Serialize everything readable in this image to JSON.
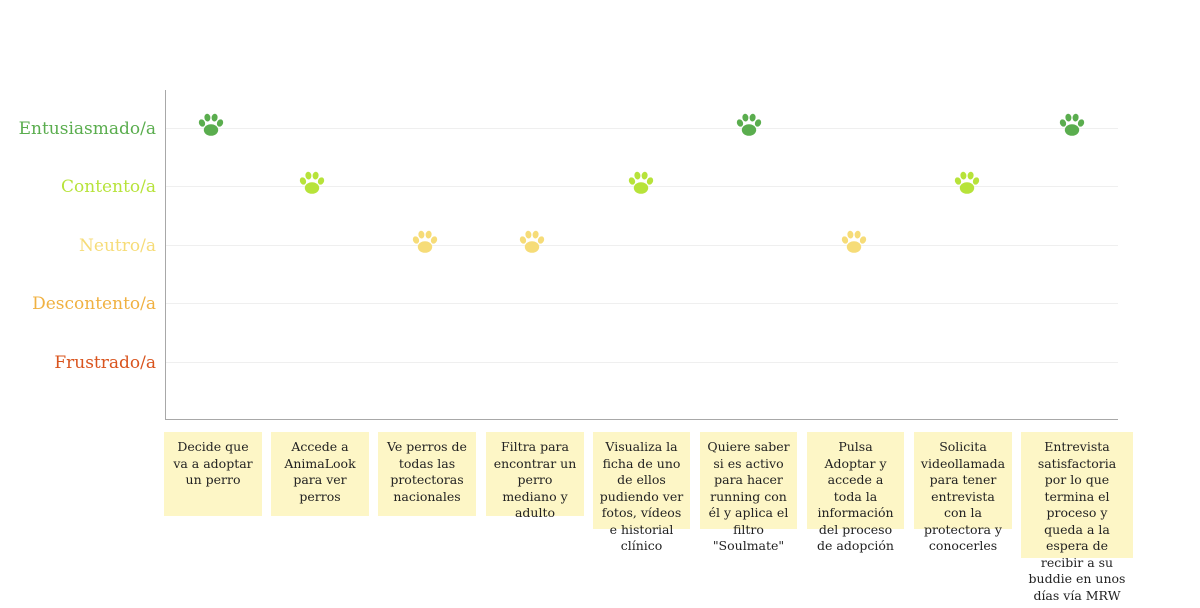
{
  "chart_data": {
    "type": "scatter",
    "levels": [
      {
        "label": "Entusiasmado/a",
        "color": "#5aad4e"
      },
      {
        "label": "Contento/a",
        "color": "#b7e33a"
      },
      {
        "label": "Neutro/a",
        "color": "#f6dc78"
      },
      {
        "label": "Descontento/a",
        "color": "#f0b141"
      },
      {
        "label": "Frustrado/a",
        "color": "#d9541e"
      }
    ],
    "steps": [
      "Decide que va a adoptar un perro",
      "Accede a AnimaLook para ver perros",
      "Ve perros de todas las protectoras nacionales",
      "Filtra para encontrar un perro mediano y adulto",
      "Visualiza la ficha de uno de ellos pudiendo ver fotos, vídeos e historial clínico",
      "Quiere saber si es activo para hacer running con él y aplica el filtro \"Soulmate\"",
      "Pulsa Adoptar y accede a toda la información del proceso de adopción",
      "Solicita videollamada para tener entrevista con la protectora y conocerles",
      "Entrevista satisfactoria por lo que termina el proceso y queda a la espera de recibir a su buddie en unos días vía MRW"
    ],
    "values": [
      "Entusiasmado/a",
      "Contento/a",
      "Neutro/a",
      "Neutro/a",
      "Contento/a",
      "Entusiasmado/a",
      "Neutro/a",
      "Contento/a",
      "Entusiasmado/a"
    ],
    "marker_icon": "paw-icon",
    "card_color": "#fdf6c6"
  }
}
